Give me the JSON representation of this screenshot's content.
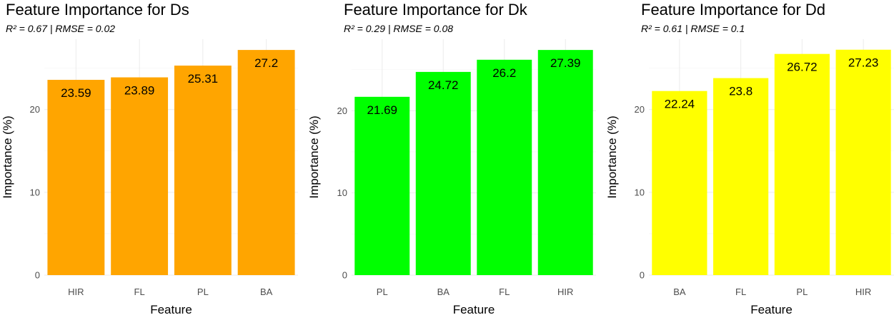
{
  "chart_data": [
    {
      "type": "bar",
      "title": "Feature Importance for Ds",
      "subtitle": "R² = 0.67 | RMSE = 0.02",
      "xlabel": "Feature",
      "ylabel": "Importance (%)",
      "categories": [
        "HIR",
        "FL",
        "PL",
        "BA"
      ],
      "values": [
        23.59,
        23.89,
        25.31,
        27.2
      ],
      "data_labels": [
        "23.59",
        "23.89",
        "25.31",
        "27.2"
      ],
      "yticks": [
        0,
        10,
        20
      ],
      "ylim": [
        0,
        28.5
      ],
      "color": "#FFA500",
      "grid": true
    },
    {
      "type": "bar",
      "title": "Feature Importance for Dk",
      "subtitle": "R² = 0.29 | RMSE = 0.08",
      "xlabel": "Feature",
      "ylabel": "Importance (%)",
      "categories": [
        "PL",
        "BA",
        "FL",
        "HIR"
      ],
      "values": [
        21.69,
        24.72,
        26.2,
        27.39
      ],
      "data_labels": [
        "21.69",
        "24.72",
        "26.2",
        "27.39"
      ],
      "yticks": [
        0,
        10,
        20
      ],
      "ylim": [
        0,
        28.7
      ],
      "color": "#00FF00",
      "grid": true
    },
    {
      "type": "bar",
      "title": "Feature Importance for Dd",
      "subtitle": "R² = 0.61 | RMSE = 0.1",
      "xlabel": "Feature",
      "ylabel": "Importance (%)",
      "categories": [
        "BA",
        "FL",
        "PL",
        "HIR"
      ],
      "values": [
        22.24,
        23.8,
        26.72,
        27.23
      ],
      "data_labels": [
        "22.24",
        "23.8",
        "26.72",
        "27.23"
      ],
      "yticks": [
        0,
        10,
        20
      ],
      "ylim": [
        0,
        28.5
      ],
      "color": "#FFFF00",
      "grid": true
    }
  ]
}
